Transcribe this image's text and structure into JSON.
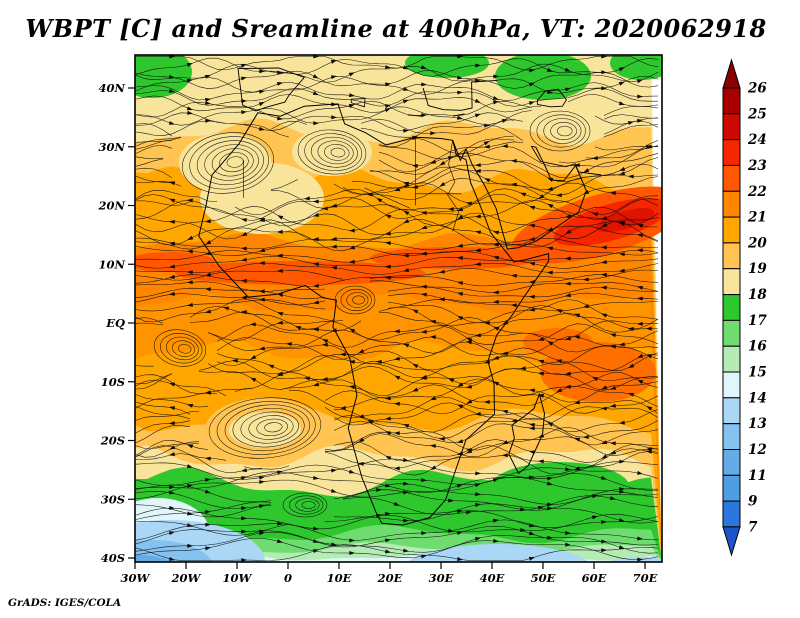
{
  "title": "WBPT [C] and Sreamline at 400hPa, VT: 2020062918",
  "attribution": "GrADS: IGES/COLA",
  "chart_data": {
    "type": "heatmap",
    "title": "WBPT [C] and Sreamline at 400hPa, VT: 2020062918",
    "variable": "WBPT [C]",
    "overlay": "Streamline (wind) with arrowheads",
    "pressure_level": "400hPa",
    "valid_time": "2020062918",
    "xlabel": "",
    "ylabel": "",
    "grid": false,
    "x_tick_labels": [
      "30W",
      "20W",
      "10W",
      "0",
      "10E",
      "20E",
      "30E",
      "40E",
      "50E",
      "60E",
      "70E"
    ],
    "y_tick_labels": [
      "40N",
      "30N",
      "20N",
      "10N",
      "EQ",
      "10S",
      "20S",
      "30S",
      "40S"
    ],
    "lon_range_deg": [
      -30,
      73.3
    ],
    "lat_range_deg": [
      -40.7,
      45.6
    ],
    "colorbar": {
      "position": "right",
      "tick_labels": [
        "26",
        "25",
        "24",
        "23",
        "22",
        "21",
        "20",
        "19",
        "18",
        "17",
        "16",
        "15",
        "14",
        "13",
        "12",
        "11",
        "9",
        "7"
      ],
      "segment_colors_top_to_bottom": [
        "#A80000",
        "#CE0A00",
        "#F52600",
        "#FF5800",
        "#FF8600",
        "#FFA700",
        "#FFC452",
        "#F8E49B",
        "#2EC72E",
        "#6FDC6F",
        "#B5ECB5",
        "#E0F6FB",
        "#A9D7F5",
        "#85C2F0",
        "#62ACE8",
        "#4E9EE4",
        "#2B77E0"
      ],
      "over_range_arrow_color": "#8B0000",
      "under_range_arrow_color": "#1D55C8"
    },
    "wbpt_by_latitude_estimate_c": [
      {
        "lat": "42N",
        "value": 18.5
      },
      {
        "lat": "35N",
        "value": 19
      },
      {
        "lat": "28N",
        "value": 20.5
      },
      {
        "lat": "20N",
        "value": 21.5
      },
      {
        "lat": "12N",
        "value": 23.5
      },
      {
        "lat": "8N",
        "value": 24.5
      },
      {
        "lat": "EQ",
        "value": 22
      },
      {
        "lat": "10S",
        "value": 21.5
      },
      {
        "lat": "18S",
        "value": 20.5
      },
      {
        "lat": "24S",
        "value": 19
      },
      {
        "lat": "30S",
        "value": 16.5
      },
      {
        "lat": "36S",
        "value": 15
      },
      {
        "lat": "40S",
        "value": 12.5
      }
    ],
    "notable_features": [
      "Warm red band (24-26C) over Arabia / Horn of Africa near 10-20N, 40-70E",
      "Deep orange WBPT maximum band along ~8-12N across the Sahel",
      "Green patches (17-18C) along the 40N northern edge",
      "Green band (16-18C) near 25-35S with cold blue air (9-14C) at 35-40S",
      "Closed anticyclonic eddy near 12W 27N and near 5W 18S"
    ]
  }
}
